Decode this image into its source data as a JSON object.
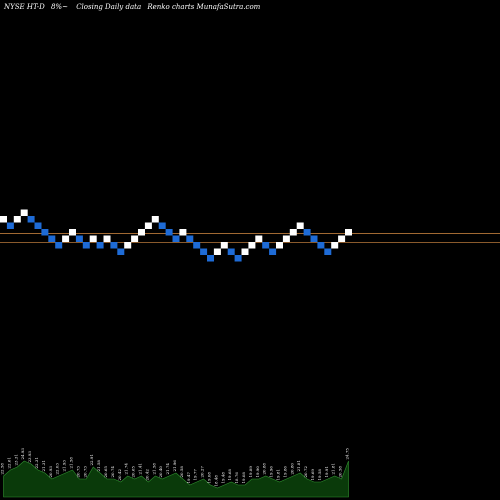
{
  "caption": {
    "symbol": "NYSE HT-D",
    "params": "8%~",
    "chart_kind": "Closing Daily data",
    "brand": "Renko charts MunafaSutra.com"
  },
  "colors": {
    "background": "#000000",
    "up_brick": "#ffffff",
    "down_brick": "#1e6bd6",
    "level_line": "#b8783a",
    "volume_fill": "#0a3a0a",
    "volume_line": "#2f8f2f",
    "text": "#ffffff"
  },
  "chart_data": {
    "type": "renko",
    "title": "NYSE HT-D 8%~ Closing Daily data Renko charts MunafaSutra.com",
    "grid": false,
    "brick_size": "8%",
    "bricks": [
      {
        "level": 0,
        "dir": "up"
      },
      {
        "level": -1,
        "dir": "down"
      },
      {
        "level": 0,
        "dir": "up"
      },
      {
        "level": 1,
        "dir": "up"
      },
      {
        "level": 0,
        "dir": "down"
      },
      {
        "level": -1,
        "dir": "down"
      },
      {
        "level": -2,
        "dir": "down"
      },
      {
        "level": -3,
        "dir": "down"
      },
      {
        "level": -4,
        "dir": "down"
      },
      {
        "level": -3,
        "dir": "up"
      },
      {
        "level": -2,
        "dir": "up"
      },
      {
        "level": -3,
        "dir": "down"
      },
      {
        "level": -4,
        "dir": "down"
      },
      {
        "level": -3,
        "dir": "up"
      },
      {
        "level": -4,
        "dir": "down"
      },
      {
        "level": -3,
        "dir": "up"
      },
      {
        "level": -4,
        "dir": "down"
      },
      {
        "level": -5,
        "dir": "down"
      },
      {
        "level": -4,
        "dir": "up"
      },
      {
        "level": -3,
        "dir": "up"
      },
      {
        "level": -2,
        "dir": "up"
      },
      {
        "level": -1,
        "dir": "up"
      },
      {
        "level": 0,
        "dir": "up"
      },
      {
        "level": -1,
        "dir": "down"
      },
      {
        "level": -2,
        "dir": "down"
      },
      {
        "level": -3,
        "dir": "down"
      },
      {
        "level": -2,
        "dir": "up"
      },
      {
        "level": -3,
        "dir": "down"
      },
      {
        "level": -4,
        "dir": "down"
      },
      {
        "level": -5,
        "dir": "down"
      },
      {
        "level": -6,
        "dir": "down"
      },
      {
        "level": -5,
        "dir": "up"
      },
      {
        "level": -4,
        "dir": "up"
      },
      {
        "level": -5,
        "dir": "down"
      },
      {
        "level": -6,
        "dir": "down"
      },
      {
        "level": -5,
        "dir": "up"
      },
      {
        "level": -4,
        "dir": "up"
      },
      {
        "level": -3,
        "dir": "up"
      },
      {
        "level": -4,
        "dir": "down"
      },
      {
        "level": -5,
        "dir": "down"
      },
      {
        "level": -4,
        "dir": "up"
      },
      {
        "level": -3,
        "dir": "up"
      },
      {
        "level": -2,
        "dir": "up"
      },
      {
        "level": -1,
        "dir": "up"
      },
      {
        "level": -2,
        "dir": "down"
      },
      {
        "level": -3,
        "dir": "down"
      },
      {
        "level": -4,
        "dir": "down"
      },
      {
        "level": -5,
        "dir": "down"
      },
      {
        "level": -4,
        "dir": "up"
      },
      {
        "level": -3,
        "dir": "up"
      },
      {
        "level": -2,
        "dir": "up"
      }
    ],
    "reference_levels": [
      -2.2,
      -3.6
    ],
    "volume_labels": [
      "22.58",
      "22.61",
      "23.31",
      "24.93",
      "23.93",
      "22.31",
      "21.31",
      "20.93",
      "22.03",
      "21.93",
      "21.58",
      "20.73",
      "20.73",
      "22.91",
      "21.58",
      "20.65",
      "20.74",
      "20.42",
      "21.74",
      "20.65",
      "21.41",
      "20.42",
      "21.58",
      "20.40",
      "21.74",
      "21.96",
      "20.58",
      "19.47",
      "19.77",
      "20.27",
      "19.08",
      "18.48",
      "19.48",
      "19.68",
      "18.76",
      "19.08",
      "19.89",
      "19.90",
      "20.88",
      "19.96",
      "19.81",
      "19.86",
      "20.80",
      "21.81",
      "20.72",
      "19.69",
      "19.58",
      "19.91",
      "21.81",
      "20.58",
      "24.75"
    ],
    "volume_heights": [
      0.35,
      0.45,
      0.5,
      0.6,
      0.55,
      0.45,
      0.4,
      0.3,
      0.35,
      0.4,
      0.45,
      0.3,
      0.3,
      0.5,
      0.4,
      0.3,
      0.3,
      0.25,
      0.35,
      0.3,
      0.35,
      0.25,
      0.35,
      0.3,
      0.35,
      0.4,
      0.3,
      0.2,
      0.25,
      0.3,
      0.2,
      0.15,
      0.2,
      0.25,
      0.2,
      0.2,
      0.3,
      0.3,
      0.35,
      0.3,
      0.25,
      0.3,
      0.35,
      0.4,
      0.3,
      0.25,
      0.25,
      0.3,
      0.35,
      0.3,
      0.6
    ]
  }
}
